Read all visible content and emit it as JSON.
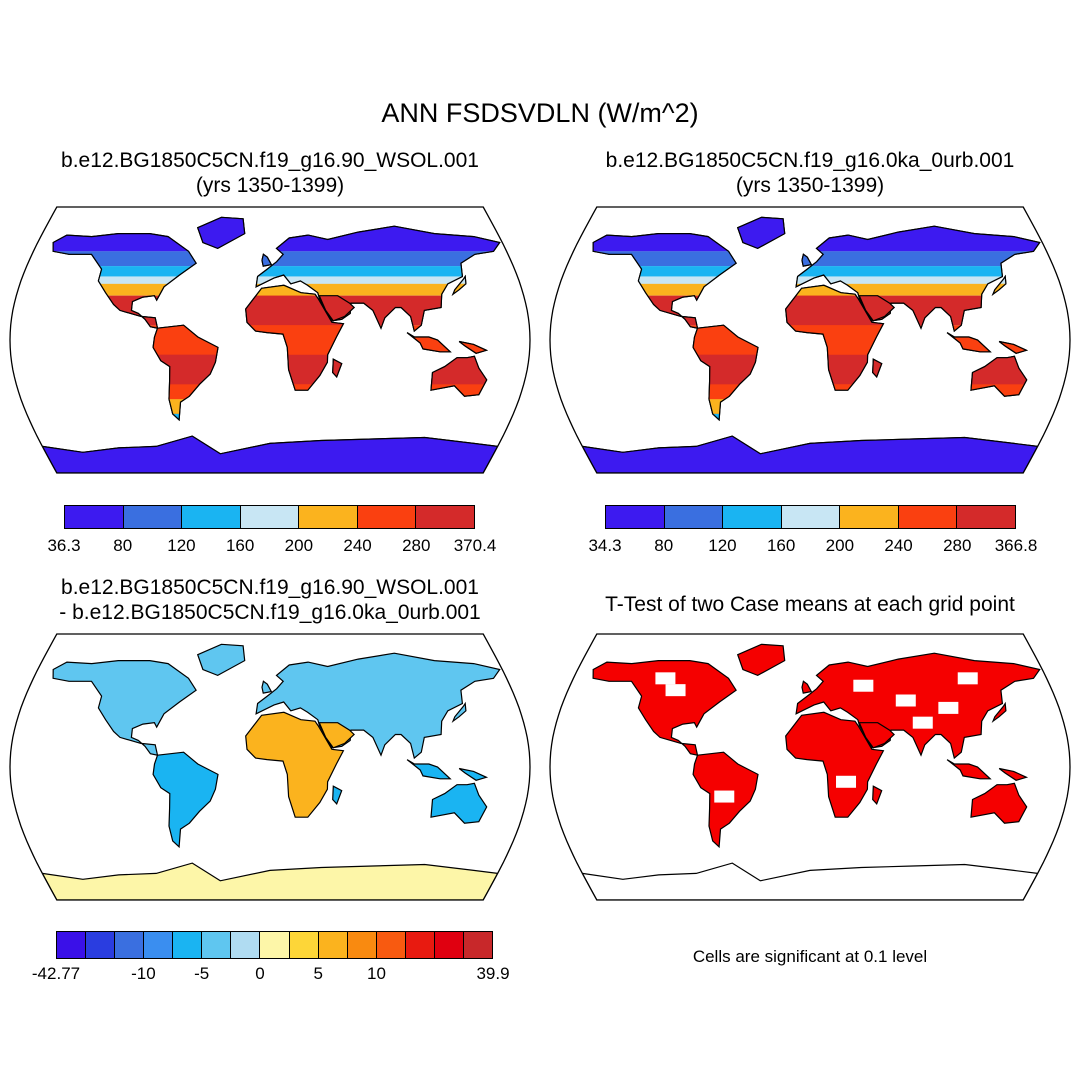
{
  "title": "ANN FSDSVDLN (W/m^2)",
  "panels": [
    {
      "id": "case1",
      "title_lines": [
        "b.e12.BG1850C5CN.f19_g16.90_WSOL.001",
        "(yrs 1350-1399)"
      ],
      "colorbar": {
        "colors": [
          "#3d1af0",
          "#3a6fe0",
          "#1ab4f2",
          "#c8e6f4",
          "#fbb31e",
          "#fa4010",
          "#d42a2a"
        ],
        "tick_labels": [
          "36.3",
          "80",
          "120",
          "160",
          "200",
          "240",
          "280",
          "370.4"
        ]
      }
    },
    {
      "id": "case2",
      "title_lines": [
        "b.e12.BG1850C5CN.f19_g16.0ka_0urb.001",
        "(yrs 1350-1399)"
      ],
      "colorbar": {
        "colors": [
          "#3d1af0",
          "#3a6fe0",
          "#1ab4f2",
          "#c8e6f4",
          "#fbb31e",
          "#fa4010",
          "#d42a2a"
        ],
        "tick_labels": [
          "34.3",
          "80",
          "120",
          "160",
          "200",
          "240",
          "280",
          "366.8"
        ]
      }
    },
    {
      "id": "difference",
      "title_lines": [
        "b.e12.BG1850C5CN.f19_g16.90_WSOL.001",
        "- b.e12.BG1850C5CN.f19_g16.0ka_0urb.001"
      ],
      "colorbar": {
        "colors": [
          "#3a10e8",
          "#2a3de0",
          "#3a6fe0",
          "#3a8ef0",
          "#1ab4f2",
          "#5fc6f0",
          "#b0dcf2",
          "#fdf6a8",
          "#fdd638",
          "#fbb31e",
          "#f98a10",
          "#f85a10",
          "#e81a10",
          "#e00010",
          "#c8282a"
        ],
        "tick_labels": [
          "-42.77",
          "-10",
          "-5",
          "0",
          "5",
          "10",
          "39.9"
        ]
      }
    },
    {
      "id": "ttest",
      "title_lines": [
        "T-Test of two Case means at each grid point"
      ],
      "note": "Cells are significant at 0.1 level",
      "significant_color": "#f50000"
    }
  ]
}
